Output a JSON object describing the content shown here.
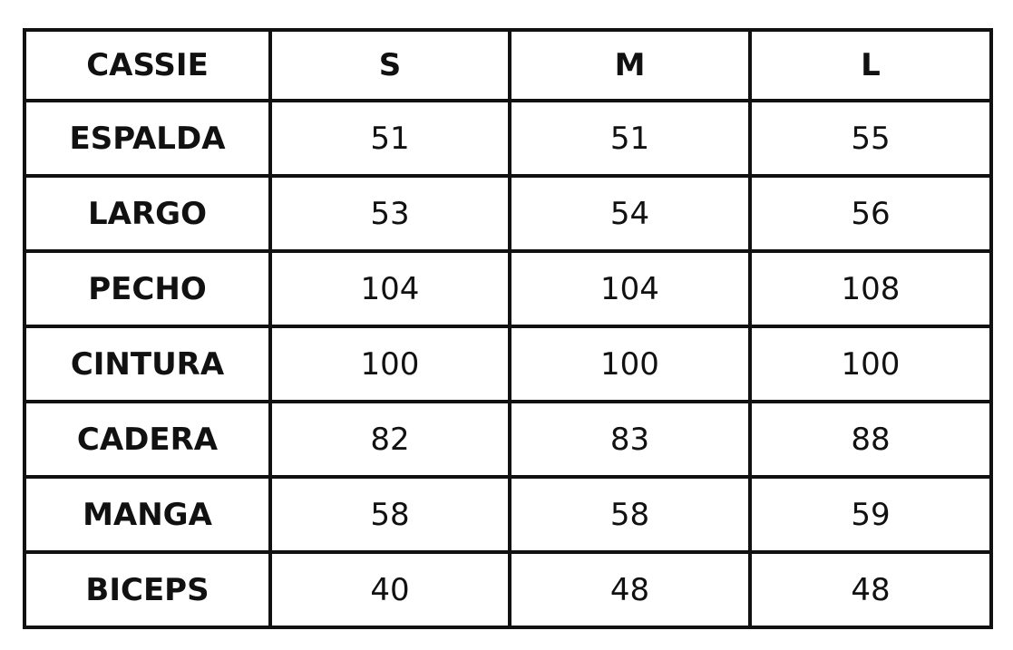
{
  "table": {
    "header": [
      "CASSIE",
      "S",
      "M",
      "L"
    ],
    "rows": [
      [
        "ESPALDA",
        51,
        51,
        55
      ],
      [
        "LARGO",
        53,
        54,
        56
      ],
      [
        "PECHO",
        104,
        104,
        108
      ],
      [
        "CINTURA",
        100,
        100,
        100
      ],
      [
        "CADERA",
        82,
        83,
        88
      ],
      [
        "MANGA",
        58,
        58,
        59
      ],
      [
        "BICEPS",
        40,
        48,
        48
      ]
    ]
  }
}
